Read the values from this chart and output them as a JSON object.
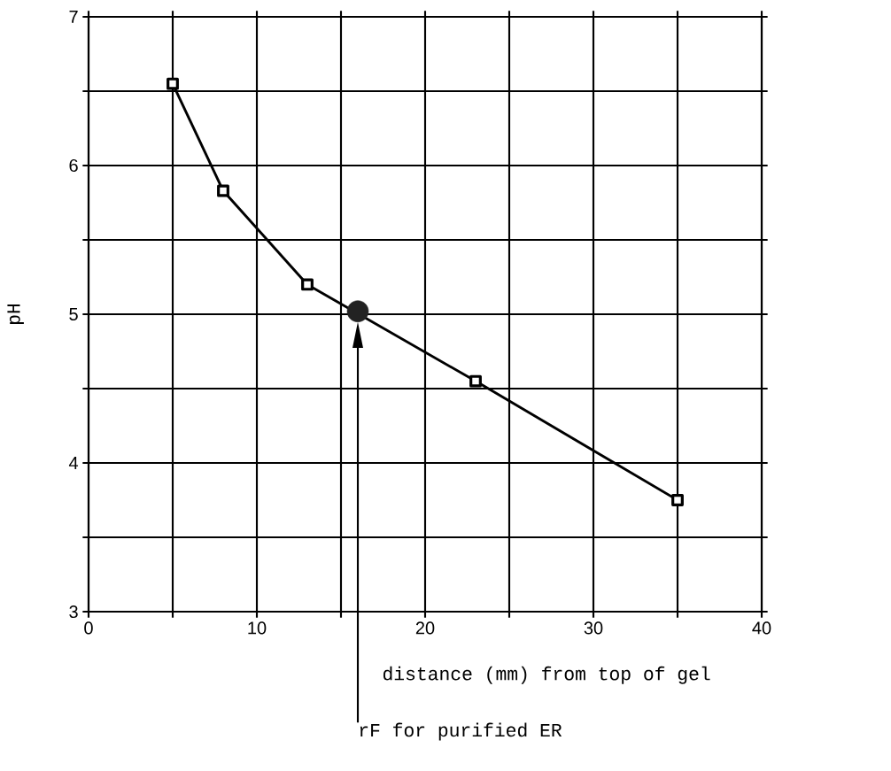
{
  "chart_data": {
    "type": "line",
    "xlabel": "distance (mm) from top of gel",
    "ylabel": "pH",
    "series": [
      {
        "color": "#000000",
        "marker": "square",
        "x": [
          5,
          8,
          13,
          23,
          35
        ],
        "values": [
          6.55,
          5.83,
          5.2,
          4.55,
          3.75
        ]
      },
      {
        "type": "scatter",
        "color": "#222222",
        "marker": "circle",
        "x": [
          16
        ],
        "values": [
          5.02
        ]
      }
    ],
    "annotations": [
      "rF for purified ER"
    ],
    "xlim": [
      0,
      40
    ],
    "ylim": [
      3,
      7
    ],
    "xticks": [
      0,
      {
        "value": 5,
        "label": null
      },
      10,
      {
        "value": 15,
        "label": null
      },
      20,
      {
        "value": 25,
        "label": null
      },
      30,
      {
        "value": 35,
        "label": null
      },
      40
    ],
    "yticks": [
      3,
      {
        "value": 3.5,
        "label": null
      },
      4,
      {
        "value": 4.5,
        "label": null
      },
      5,
      {
        "value": 5.5,
        "label": null
      },
      6,
      {
        "value": 6.5,
        "label": null
      },
      7
    ],
    "grid": true
  }
}
